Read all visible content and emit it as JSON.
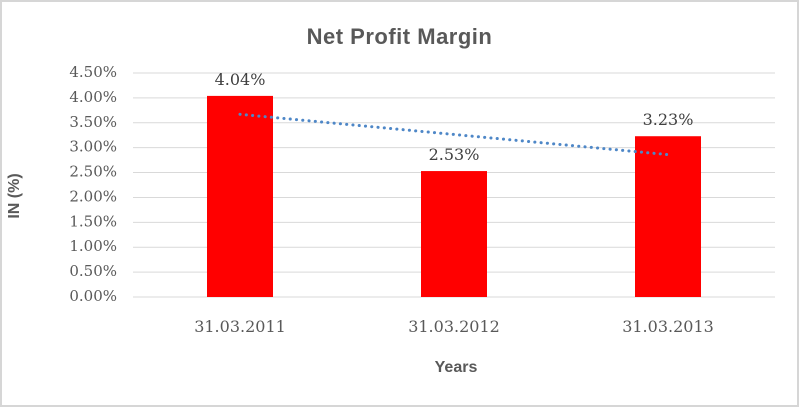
{
  "chart_data": {
    "type": "bar",
    "title": "Net Profit Margin",
    "xlabel": "Years",
    "ylabel": "IN (%)",
    "categories": [
      "31.03.2011",
      "31.03.2012",
      "31.03.2013"
    ],
    "values": [
      4.04,
      2.53,
      3.23
    ],
    "data_labels": [
      "4.04%",
      "2.53%",
      "3.23%"
    ],
    "ylim": [
      0,
      4.5
    ],
    "ytick_step": 0.5,
    "ytick_labels": [
      "0.00%",
      "0.50%",
      "1.00%",
      "1.50%",
      "2.00%",
      "2.50%",
      "3.00%",
      "3.50%",
      "4.00%",
      "4.50%"
    ],
    "grid": true,
    "legend": "none",
    "bar_color": "#ff0000",
    "gridline_color": "#d9d9d9",
    "text_color": "#595959",
    "trendline": {
      "type": "linear",
      "style": "dotted",
      "color": "#4e87c7",
      "endpoint_values": [
        3.67,
        2.86
      ]
    }
  }
}
